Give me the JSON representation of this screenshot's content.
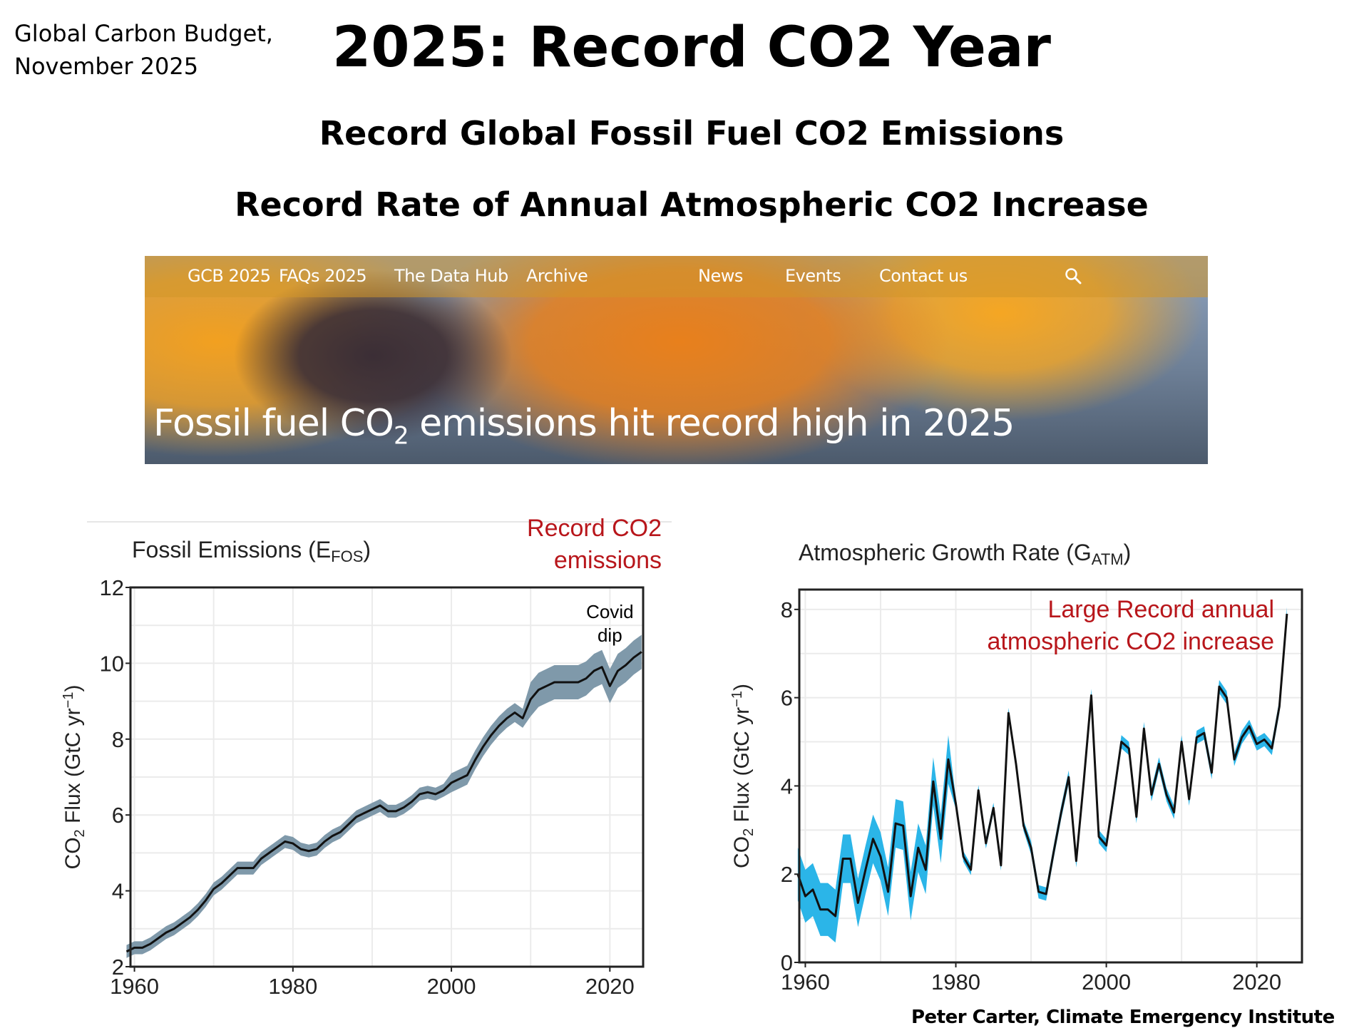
{
  "source_note": [
    "Global Carbon Budget,",
    "November 2025"
  ],
  "title": "2025: Record CO2 Year",
  "subtitles": [
    "Record Global Fossil Fuel CO2 Emissions",
    "Record Rate of Annual Atmospheric CO2 Increase"
  ],
  "banner": {
    "nav_items": [
      "GCB 2025",
      "FAQs 2025",
      "The Data Hub",
      "Archive",
      "News",
      "Events",
      "Contact us"
    ],
    "search_icon": "search-icon",
    "headline_prefix": "Fossil fuel CO",
    "headline_sub": "2",
    "headline_suffix": " emissions hit record high in 2025"
  },
  "credit": "Peter Carter, Climate Emergency Institute",
  "colors": {
    "annotation_red": "#b8161b",
    "fossil_band": "#7f99aa",
    "atm_band": "#2bb5e8",
    "line": "#111111"
  },
  "chart_data": [
    {
      "type": "area",
      "title": "Fossil Emissions (E",
      "title_sub": "FOS",
      "title_close": ")",
      "xlabel": "",
      "ylabel": "CO2 Flux (GtC yr-1)",
      "xlim": [
        1959.5,
        2024.2
      ],
      "ylim": [
        2,
        12
      ],
      "xticks": [
        1960,
        1980,
        2000,
        2020
      ],
      "yticks": [
        2,
        4,
        6,
        8,
        10,
        12
      ],
      "grid": true,
      "annotations": [
        {
          "text": [
            "Record  CO2",
            "emissions"
          ],
          "color": "red",
          "position": "top-right"
        },
        {
          "text": [
            "Covid",
            "dip"
          ],
          "color": "black",
          "position": "near-2020"
        }
      ],
      "x": [
        1959,
        1960,
        1961,
        1962,
        1963,
        1964,
        1965,
        1966,
        1967,
        1968,
        1969,
        1970,
        1971,
        1972,
        1973,
        1974,
        1975,
        1976,
        1977,
        1978,
        1979,
        1980,
        1981,
        1982,
        1983,
        1984,
        1985,
        1986,
        1987,
        1988,
        1989,
        1990,
        1991,
        1992,
        1993,
        1994,
        1995,
        1996,
        1997,
        1998,
        1999,
        2000,
        2001,
        2002,
        2003,
        2004,
        2005,
        2006,
        2007,
        2008,
        2009,
        2010,
        2011,
        2012,
        2013,
        2014,
        2015,
        2016,
        2017,
        2018,
        2019,
        2020,
        2021,
        2022,
        2023,
        2024
      ],
      "series": [
        {
          "name": "E_FOS",
          "values": [
            2.4,
            2.5,
            2.5,
            2.6,
            2.75,
            2.9,
            3.0,
            3.15,
            3.3,
            3.5,
            3.75,
            4.05,
            4.2,
            4.4,
            4.6,
            4.6,
            4.6,
            4.85,
            5.0,
            5.15,
            5.3,
            5.25,
            5.1,
            5.05,
            5.1,
            5.3,
            5.45,
            5.55,
            5.75,
            5.95,
            6.05,
            6.15,
            6.25,
            6.1,
            6.1,
            6.2,
            6.35,
            6.55,
            6.6,
            6.55,
            6.65,
            6.85,
            6.95,
            7.05,
            7.45,
            7.8,
            8.1,
            8.35,
            8.55,
            8.7,
            8.55,
            9.05,
            9.3,
            9.4,
            9.5,
            9.5,
            9.5,
            9.5,
            9.6,
            9.8,
            9.9,
            9.4,
            9.8,
            9.95,
            10.15,
            10.3
          ]
        },
        {
          "name": "uncertainty",
          "lower_offset": 0.1,
          "upper_offset": 0.1,
          "note": "band widens to about +/-0.5 after 2010"
        }
      ]
    },
    {
      "type": "area",
      "title": "Atmospheric Growth Rate (G",
      "title_sub": "ATM",
      "title_close": ")",
      "xlabel": "",
      "ylabel": "CO2 Flux (GtC yr-1)",
      "xlim": [
        1959.2,
        2026
      ],
      "ylim": [
        0,
        8.45
      ],
      "xticks": [
        1960,
        1980,
        2000,
        2020
      ],
      "yticks": [
        0,
        2,
        4,
        6,
        8
      ],
      "grid": true,
      "annotations": [
        {
          "text": [
            "Large Record annual",
            "atmospheric CO2 increase"
          ],
          "color": "red",
          "position": "top-right"
        }
      ],
      "x": [
        1959,
        1960,
        1961,
        1962,
        1963,
        1964,
        1965,
        1966,
        1967,
        1968,
        1969,
        1970,
        1971,
        1972,
        1973,
        1974,
        1975,
        1976,
        1977,
        1978,
        1979,
        1980,
        1981,
        1982,
        1983,
        1984,
        1985,
        1986,
        1987,
        1988,
        1989,
        1990,
        1991,
        1992,
        1993,
        1994,
        1995,
        1996,
        1997,
        1998,
        1999,
        2000,
        2001,
        2002,
        2003,
        2004,
        2005,
        2006,
        2007,
        2008,
        2009,
        2010,
        2011,
        2012,
        2013,
        2014,
        2015,
        2016,
        2017,
        2018,
        2019,
        2020,
        2021,
        2022,
        2023,
        2024
      ],
      "series": [
        {
          "name": "G_ATM",
          "values": [
            2.0,
            1.5,
            1.65,
            1.2,
            1.2,
            1.05,
            2.35,
            2.35,
            1.35,
            2.1,
            2.8,
            2.4,
            1.6,
            3.15,
            3.1,
            1.5,
            2.6,
            2.1,
            4.1,
            2.8,
            4.6,
            3.6,
            2.4,
            2.1,
            3.9,
            2.7,
            3.5,
            2.2,
            5.65,
            4.5,
            3.1,
            2.6,
            1.6,
            1.55,
            2.5,
            3.4,
            4.2,
            2.3,
            4.1,
            6.05,
            2.85,
            2.65,
            3.8,
            5.0,
            4.85,
            3.3,
            5.3,
            3.8,
            4.5,
            3.8,
            3.4,
            5.0,
            3.7,
            5.1,
            5.2,
            4.3,
            6.25,
            6.0,
            4.6,
            5.1,
            5.35,
            4.95,
            5.05,
            4.85,
            5.8,
            7.9
          ]
        },
        {
          "name": "uncertainty",
          "note": "about +/-0.6 before 1980, narrowing to about +/-0.15 after"
        }
      ]
    }
  ]
}
